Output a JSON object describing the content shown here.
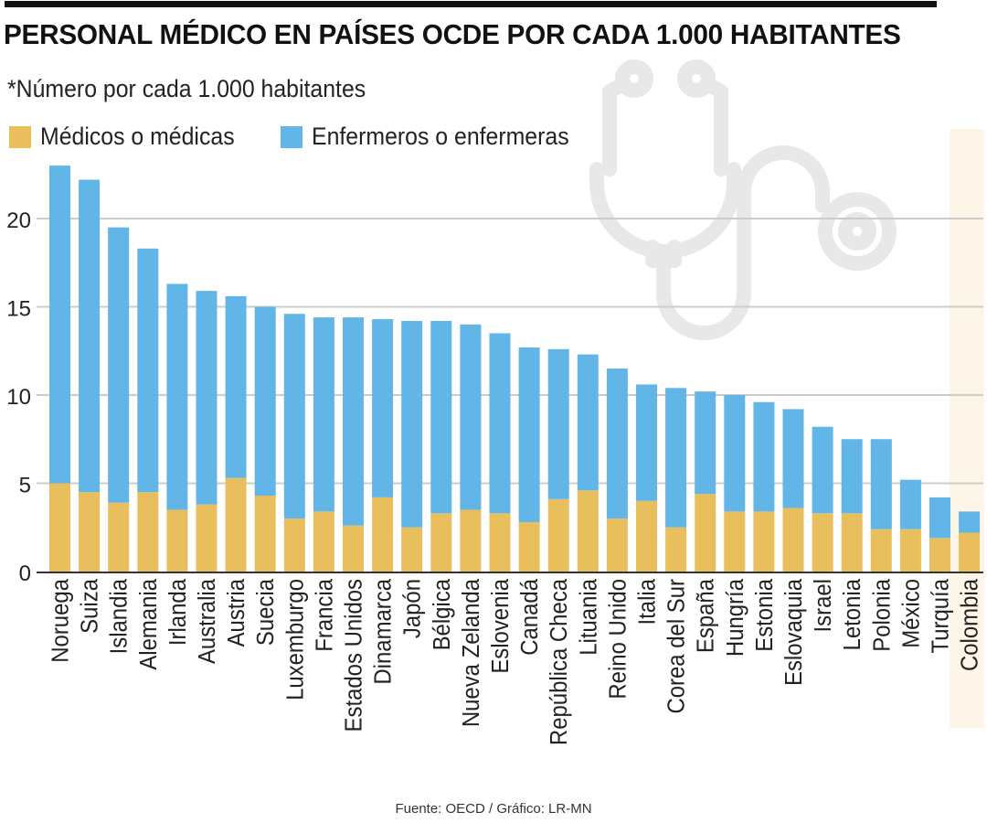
{
  "header": {
    "title": "PERSONAL MÉDICO EN PAÍSES OCDE POR CADA 1.000 HABITANTES",
    "subtitle": "*Número por cada 1.000 habitantes"
  },
  "decoration": {
    "icon": "stethoscope-icon"
  },
  "highlight": {
    "category": "Colombia"
  },
  "footer": {
    "source": "Fuente: OECD / Gráfico: LR-MN"
  },
  "colors": {
    "doctors": "#e8bf5c",
    "nurses": "#62b6e7",
    "gridline": "#cccccc",
    "axis": "#333333",
    "highlight_band": "#fdf6e8",
    "icon": "#e8e8e8"
  },
  "chart_data": {
    "type": "bar",
    "stacked": true,
    "title": "PERSONAL MÉDICO EN PAÍSES OCDE POR CADA 1.000 HABITANTES",
    "subtitle": "*Número por cada 1.000 habitantes",
    "xlabel": "",
    "ylabel": "",
    "ylim": [
      0,
      23
    ],
    "yticks": [
      0,
      5,
      10,
      15,
      20
    ],
    "grid": true,
    "legend": "top-left",
    "categories": [
      "Noruega",
      "Suiza",
      "Islandia",
      "Alemania",
      "Irlanda",
      "Australia",
      "Austria",
      "Suecia",
      "Luxemburgo",
      "Francia",
      "Estados Unidos",
      "Dinamarca",
      "Japón",
      "Bélgica",
      "Nueva Zelanda",
      "Eslovenia",
      "Canadá",
      "República Checa",
      "Lituania",
      "Reino Unido",
      "Italia",
      "Corea del Sur",
      "España",
      "Hungría",
      "Estonia",
      "Eslovaquia",
      "Israel",
      "Letonia",
      "Polonia",
      "México",
      "Turquía",
      "Colombia"
    ],
    "series": [
      {
        "name": "Médicos o médicas",
        "values": [
          5.0,
          4.5,
          3.9,
          4.5,
          3.5,
          3.8,
          5.3,
          4.3,
          3.0,
          3.4,
          2.6,
          4.2,
          2.5,
          3.3,
          3.5,
          3.3,
          2.8,
          4.1,
          4.6,
          3.0,
          4.0,
          2.5,
          4.4,
          3.4,
          3.4,
          3.6,
          3.3,
          3.3,
          2.4,
          2.4,
          1.9,
          2.2
        ]
      },
      {
        "name": "Enfermeros o enfermeras",
        "values": [
          18.0,
          17.7,
          15.6,
          13.8,
          12.8,
          12.1,
          10.3,
          10.7,
          11.6,
          11.0,
          11.8,
          10.1,
          11.7,
          10.9,
          10.5,
          10.2,
          9.9,
          8.5,
          7.7,
          8.5,
          6.6,
          7.9,
          5.8,
          6.6,
          6.2,
          5.6,
          4.9,
          4.2,
          5.1,
          2.8,
          2.3,
          1.2
        ]
      }
    ]
  }
}
